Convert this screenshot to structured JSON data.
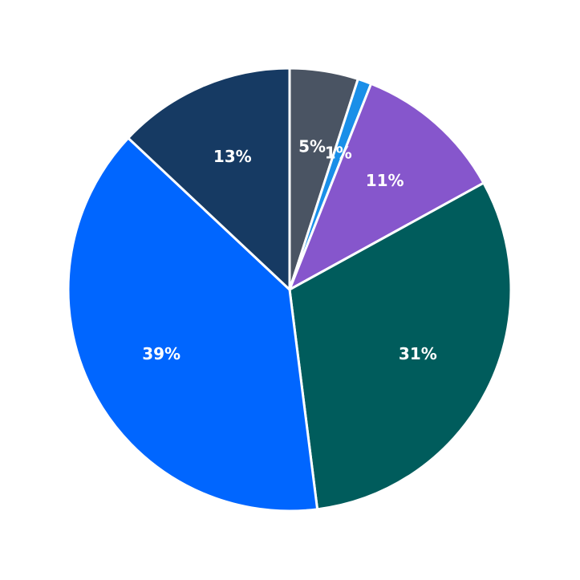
{
  "chart_data": {
    "type": "pie",
    "values": [
      5,
      1,
      11,
      31,
      39,
      13
    ],
    "value_labels": [
      "5%",
      "1%",
      "11%",
      "31%",
      "39%",
      "13%"
    ],
    "colors": [
      "#4a5463",
      "#1a8fe8",
      "#8656cc",
      "#005c5c",
      "#0066ff",
      "#163a63"
    ],
    "start_angle": 90,
    "direction": "clockwise"
  }
}
